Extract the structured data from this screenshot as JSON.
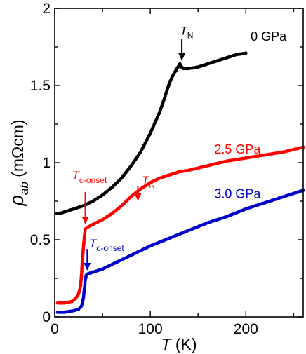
{
  "chart_data": {
    "type": "scatter",
    "xlabel": {
      "symbol": "T",
      "unit": " (K)"
    },
    "ylabel": {
      "symbol": "ρ",
      "subscript": "ab",
      "unit": " (mΩcm)"
    },
    "xlim": [
      0,
      260
    ],
    "ylim": [
      0,
      2
    ],
    "xticks": [
      0,
      100,
      200
    ],
    "yticks": [
      0,
      0.5,
      1,
      1.5,
      2
    ],
    "ytick_labels": [
      "0",
      "0.5",
      "1",
      "1.5",
      "2"
    ],
    "series": [
      {
        "name": "0 GPa",
        "color": "#000000",
        "x": [
          2,
          5,
          10,
          15,
          20,
          25,
          30,
          40,
          50,
          60,
          70,
          80,
          90,
          100,
          105,
          110,
          115,
          118,
          121,
          124,
          127,
          129,
          130,
          131,
          132,
          133,
          135,
          140,
          150,
          160,
          170,
          180,
          190,
          200
        ],
        "y": [
          0.67,
          0.67,
          0.68,
          0.69,
          0.7,
          0.71,
          0.72,
          0.75,
          0.79,
          0.84,
          0.9,
          0.98,
          1.07,
          1.19,
          1.26,
          1.33,
          1.42,
          1.48,
          1.53,
          1.57,
          1.6,
          1.62,
          1.63,
          1.64,
          1.62,
          1.62,
          1.61,
          1.61,
          1.62,
          1.64,
          1.66,
          1.68,
          1.7,
          1.71
        ]
      },
      {
        "name": "2.5 GPa",
        "color": "#ff0000",
        "x": [
          3,
          10,
          18,
          22,
          25,
          27,
          28,
          29,
          30,
          31,
          32,
          34,
          40,
          50,
          60,
          70,
          80,
          90,
          100,
          110,
          120,
          130,
          140,
          160,
          180,
          200,
          220,
          240,
          260
        ],
        "y": [
          0.09,
          0.09,
          0.1,
          0.12,
          0.15,
          0.2,
          0.27,
          0.37,
          0.45,
          0.52,
          0.57,
          0.58,
          0.6,
          0.63,
          0.67,
          0.72,
          0.78,
          0.83,
          0.87,
          0.9,
          0.92,
          0.94,
          0.95,
          0.98,
          1.01,
          1.03,
          1.05,
          1.07,
          1.1
        ]
      },
      {
        "name": "3.0 GPa",
        "color": "#0000cc",
        "x": [
          3,
          10,
          20,
          25,
          28,
          30,
          31,
          32,
          33,
          35,
          40,
          50,
          60,
          80,
          100,
          120,
          140,
          160,
          180,
          200,
          220,
          240,
          260
        ],
        "y": [
          0.03,
          0.03,
          0.04,
          0.05,
          0.07,
          0.12,
          0.18,
          0.24,
          0.27,
          0.28,
          0.29,
          0.31,
          0.34,
          0.4,
          0.46,
          0.51,
          0.56,
          0.61,
          0.65,
          0.7,
          0.74,
          0.78,
          0.82
        ]
      }
    ],
    "series_labels": [
      {
        "text": "0 GPa",
        "x": 205,
        "y": 1.79
      },
      {
        "text": "2.5 GPa",
        "x": 167,
        "y": 1.06
      },
      {
        "text": "3.0 GPa",
        "x": 167,
        "y": 0.77
      }
    ],
    "annotations": [
      {
        "main": "T",
        "sub": "N",
        "color": "#000000",
        "text_x": 131,
        "text_y": 1.83,
        "arrow_from": [
          133,
          1.8
        ],
        "arrow_to": [
          133,
          1.66
        ]
      },
      {
        "main": "T",
        "sub": "c-onset",
        "color": "#ff0000",
        "text_x": 18,
        "text_y": 0.89,
        "arrow_from": [
          32,
          0.81
        ],
        "arrow_to": [
          32,
          0.6
        ]
      },
      {
        "main": "T",
        "sub": "N",
        "color": "#ff0000",
        "text_x": 91,
        "text_y": 0.86,
        "arrow_from": [
          87,
          0.85
        ],
        "arrow_to": [
          87,
          0.75
        ]
      },
      {
        "main": "T",
        "sub": "c-onset",
        "color": "#0000cc",
        "text_x": 36,
        "text_y": 0.45,
        "arrow_from": [
          34,
          0.44
        ],
        "arrow_to": [
          34,
          0.3
        ]
      }
    ]
  }
}
